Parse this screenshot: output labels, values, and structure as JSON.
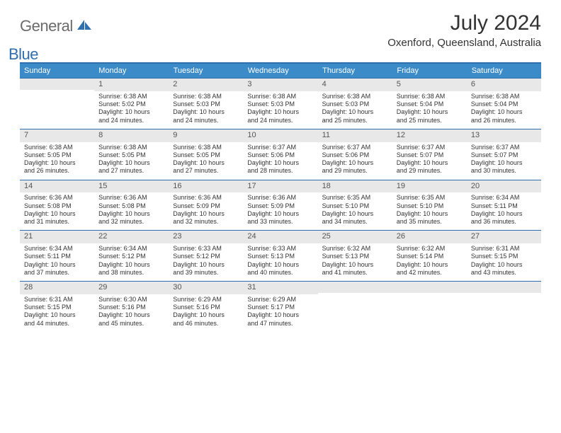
{
  "brand": {
    "part1": "General",
    "part2": "Blue"
  },
  "title": "July 2024",
  "location": "Oxenford, Queensland, Australia",
  "colors": {
    "header_bar": "#3b8bc9",
    "rule": "#2f6fae",
    "daynum_bg": "#e8e8e8",
    "text": "#333333",
    "logo_gray": "#6b6b6b",
    "logo_blue": "#2f6fae"
  },
  "typography": {
    "title_fontsize": 30,
    "location_fontsize": 15,
    "weekday_fontsize": 11,
    "body_fontsize": 9
  },
  "weekdays": [
    "Sunday",
    "Monday",
    "Tuesday",
    "Wednesday",
    "Thursday",
    "Friday",
    "Saturday"
  ],
  "weeks": [
    [
      {
        "num": "",
        "sunrise": "",
        "sunset": "",
        "daylight1": "",
        "daylight2": ""
      },
      {
        "num": "1",
        "sunrise": "Sunrise: 6:38 AM",
        "sunset": "Sunset: 5:02 PM",
        "daylight1": "Daylight: 10 hours",
        "daylight2": "and 24 minutes."
      },
      {
        "num": "2",
        "sunrise": "Sunrise: 6:38 AM",
        "sunset": "Sunset: 5:03 PM",
        "daylight1": "Daylight: 10 hours",
        "daylight2": "and 24 minutes."
      },
      {
        "num": "3",
        "sunrise": "Sunrise: 6:38 AM",
        "sunset": "Sunset: 5:03 PM",
        "daylight1": "Daylight: 10 hours",
        "daylight2": "and 24 minutes."
      },
      {
        "num": "4",
        "sunrise": "Sunrise: 6:38 AM",
        "sunset": "Sunset: 5:03 PM",
        "daylight1": "Daylight: 10 hours",
        "daylight2": "and 25 minutes."
      },
      {
        "num": "5",
        "sunrise": "Sunrise: 6:38 AM",
        "sunset": "Sunset: 5:04 PM",
        "daylight1": "Daylight: 10 hours",
        "daylight2": "and 25 minutes."
      },
      {
        "num": "6",
        "sunrise": "Sunrise: 6:38 AM",
        "sunset": "Sunset: 5:04 PM",
        "daylight1": "Daylight: 10 hours",
        "daylight2": "and 26 minutes."
      }
    ],
    [
      {
        "num": "7",
        "sunrise": "Sunrise: 6:38 AM",
        "sunset": "Sunset: 5:05 PM",
        "daylight1": "Daylight: 10 hours",
        "daylight2": "and 26 minutes."
      },
      {
        "num": "8",
        "sunrise": "Sunrise: 6:38 AM",
        "sunset": "Sunset: 5:05 PM",
        "daylight1": "Daylight: 10 hours",
        "daylight2": "and 27 minutes."
      },
      {
        "num": "9",
        "sunrise": "Sunrise: 6:38 AM",
        "sunset": "Sunset: 5:05 PM",
        "daylight1": "Daylight: 10 hours",
        "daylight2": "and 27 minutes."
      },
      {
        "num": "10",
        "sunrise": "Sunrise: 6:37 AM",
        "sunset": "Sunset: 5:06 PM",
        "daylight1": "Daylight: 10 hours",
        "daylight2": "and 28 minutes."
      },
      {
        "num": "11",
        "sunrise": "Sunrise: 6:37 AM",
        "sunset": "Sunset: 5:06 PM",
        "daylight1": "Daylight: 10 hours",
        "daylight2": "and 29 minutes."
      },
      {
        "num": "12",
        "sunrise": "Sunrise: 6:37 AM",
        "sunset": "Sunset: 5:07 PM",
        "daylight1": "Daylight: 10 hours",
        "daylight2": "and 29 minutes."
      },
      {
        "num": "13",
        "sunrise": "Sunrise: 6:37 AM",
        "sunset": "Sunset: 5:07 PM",
        "daylight1": "Daylight: 10 hours",
        "daylight2": "and 30 minutes."
      }
    ],
    [
      {
        "num": "14",
        "sunrise": "Sunrise: 6:36 AM",
        "sunset": "Sunset: 5:08 PM",
        "daylight1": "Daylight: 10 hours",
        "daylight2": "and 31 minutes."
      },
      {
        "num": "15",
        "sunrise": "Sunrise: 6:36 AM",
        "sunset": "Sunset: 5:08 PM",
        "daylight1": "Daylight: 10 hours",
        "daylight2": "and 32 minutes."
      },
      {
        "num": "16",
        "sunrise": "Sunrise: 6:36 AM",
        "sunset": "Sunset: 5:09 PM",
        "daylight1": "Daylight: 10 hours",
        "daylight2": "and 32 minutes."
      },
      {
        "num": "17",
        "sunrise": "Sunrise: 6:36 AM",
        "sunset": "Sunset: 5:09 PM",
        "daylight1": "Daylight: 10 hours",
        "daylight2": "and 33 minutes."
      },
      {
        "num": "18",
        "sunrise": "Sunrise: 6:35 AM",
        "sunset": "Sunset: 5:10 PM",
        "daylight1": "Daylight: 10 hours",
        "daylight2": "and 34 minutes."
      },
      {
        "num": "19",
        "sunrise": "Sunrise: 6:35 AM",
        "sunset": "Sunset: 5:10 PM",
        "daylight1": "Daylight: 10 hours",
        "daylight2": "and 35 minutes."
      },
      {
        "num": "20",
        "sunrise": "Sunrise: 6:34 AM",
        "sunset": "Sunset: 5:11 PM",
        "daylight1": "Daylight: 10 hours",
        "daylight2": "and 36 minutes."
      }
    ],
    [
      {
        "num": "21",
        "sunrise": "Sunrise: 6:34 AM",
        "sunset": "Sunset: 5:11 PM",
        "daylight1": "Daylight: 10 hours",
        "daylight2": "and 37 minutes."
      },
      {
        "num": "22",
        "sunrise": "Sunrise: 6:34 AM",
        "sunset": "Sunset: 5:12 PM",
        "daylight1": "Daylight: 10 hours",
        "daylight2": "and 38 minutes."
      },
      {
        "num": "23",
        "sunrise": "Sunrise: 6:33 AM",
        "sunset": "Sunset: 5:12 PM",
        "daylight1": "Daylight: 10 hours",
        "daylight2": "and 39 minutes."
      },
      {
        "num": "24",
        "sunrise": "Sunrise: 6:33 AM",
        "sunset": "Sunset: 5:13 PM",
        "daylight1": "Daylight: 10 hours",
        "daylight2": "and 40 minutes."
      },
      {
        "num": "25",
        "sunrise": "Sunrise: 6:32 AM",
        "sunset": "Sunset: 5:13 PM",
        "daylight1": "Daylight: 10 hours",
        "daylight2": "and 41 minutes."
      },
      {
        "num": "26",
        "sunrise": "Sunrise: 6:32 AM",
        "sunset": "Sunset: 5:14 PM",
        "daylight1": "Daylight: 10 hours",
        "daylight2": "and 42 minutes."
      },
      {
        "num": "27",
        "sunrise": "Sunrise: 6:31 AM",
        "sunset": "Sunset: 5:15 PM",
        "daylight1": "Daylight: 10 hours",
        "daylight2": "and 43 minutes."
      }
    ],
    [
      {
        "num": "28",
        "sunrise": "Sunrise: 6:31 AM",
        "sunset": "Sunset: 5:15 PM",
        "daylight1": "Daylight: 10 hours",
        "daylight2": "and 44 minutes."
      },
      {
        "num": "29",
        "sunrise": "Sunrise: 6:30 AM",
        "sunset": "Sunset: 5:16 PM",
        "daylight1": "Daylight: 10 hours",
        "daylight2": "and 45 minutes."
      },
      {
        "num": "30",
        "sunrise": "Sunrise: 6:29 AM",
        "sunset": "Sunset: 5:16 PM",
        "daylight1": "Daylight: 10 hours",
        "daylight2": "and 46 minutes."
      },
      {
        "num": "31",
        "sunrise": "Sunrise: 6:29 AM",
        "sunset": "Sunset: 5:17 PM",
        "daylight1": "Daylight: 10 hours",
        "daylight2": "and 47 minutes."
      },
      {
        "num": "",
        "sunrise": "",
        "sunset": "",
        "daylight1": "",
        "daylight2": ""
      },
      {
        "num": "",
        "sunrise": "",
        "sunset": "",
        "daylight1": "",
        "daylight2": ""
      },
      {
        "num": "",
        "sunrise": "",
        "sunset": "",
        "daylight1": "",
        "daylight2": ""
      }
    ]
  ]
}
